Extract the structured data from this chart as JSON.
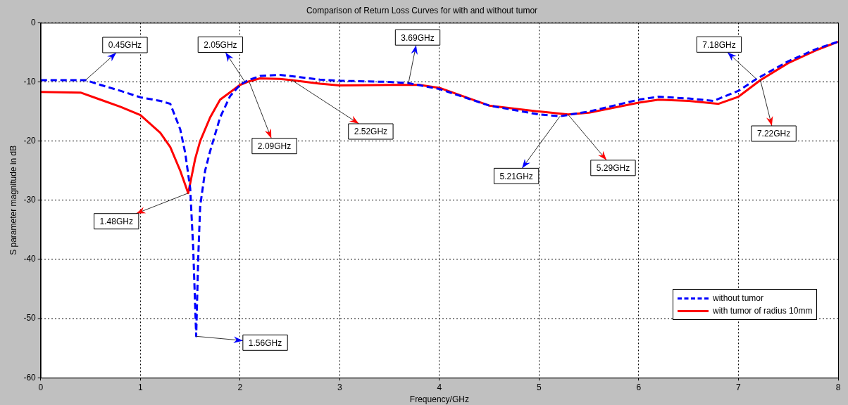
{
  "chart_data": {
    "type": "line",
    "title": "Comparison of Return Loss Curves for with and without tumor",
    "xlabel": "Frequency/GHz",
    "ylabel": "S parameter magnitude in dB",
    "xlim": [
      0,
      8
    ],
    "xticks": [
      0,
      1,
      2,
      3,
      4,
      5,
      6,
      7,
      8
    ],
    "ylim": [
      -60,
      0
    ],
    "yticks": [
      -60,
      -50,
      -40,
      -30,
      -20,
      -10,
      0
    ],
    "grid": true,
    "legend": "bottom right",
    "marker": "none",
    "series": [
      {
        "name": "without tumor",
        "color": "#0000ff",
        "line_style": "dashed",
        "x": [
          0,
          0.3,
          0.45,
          0.6,
          0.8,
          1.0,
          1.2,
          1.3,
          1.4,
          1.45,
          1.5,
          1.53,
          1.55,
          1.56,
          1.58,
          1.6,
          1.65,
          1.7,
          1.8,
          1.9,
          2.0,
          2.05,
          2.1,
          2.2,
          2.4,
          2.6,
          2.8,
          3.0,
          3.5,
          3.69,
          4.0,
          4.5,
          5.0,
          5.21,
          5.5,
          6.0,
          6.2,
          6.5,
          6.75,
          7.0,
          7.18,
          7.5,
          7.8,
          8.0
        ],
        "values": [
          -9.7,
          -9.7,
          -9.7,
          -10.5,
          -11.5,
          -12.6,
          -13.2,
          -13.7,
          -18,
          -22,
          -28,
          -38,
          -48,
          -53,
          -40,
          -31,
          -25,
          -21.7,
          -16,
          -12.4,
          -10.5,
          -10,
          -9.6,
          -9,
          -8.8,
          -9.2,
          -9.6,
          -9.8,
          -10,
          -10.2,
          -11.2,
          -14,
          -15.5,
          -15.8,
          -15,
          -13,
          -12.5,
          -12.8,
          -13.2,
          -11.5,
          -9.5,
          -6.5,
          -4.3,
          -3.2
        ]
      },
      {
        "name": "with tumor of radius 10mm",
        "color": "#ff0000",
        "line_style": "solid",
        "x": [
          0,
          0.4,
          0.6,
          0.8,
          1.0,
          1.2,
          1.3,
          1.4,
          1.48,
          1.55,
          1.6,
          1.7,
          1.8,
          2.0,
          2.09,
          2.2,
          2.4,
          2.52,
          2.8,
          3.0,
          3.5,
          3.8,
          4.0,
          4.5,
          5.0,
          5.29,
          5.5,
          6.0,
          6.2,
          6.5,
          6.8,
          7.0,
          7.22,
          7.5,
          7.8,
          8.0
        ],
        "values": [
          -11.7,
          -11.8,
          -13,
          -14.2,
          -15.6,
          -18.6,
          -21,
          -25,
          -28.8,
          -23,
          -20,
          -16,
          -13,
          -10.5,
          -9.9,
          -9.4,
          -9.5,
          -9.7,
          -10.3,
          -10.6,
          -10.5,
          -10.5,
          -11,
          -14,
          -15,
          -15.5,
          -15.2,
          -13.5,
          -13,
          -13.2,
          -13.7,
          -12.5,
          -9.7,
          -6.8,
          -4.5,
          -3.2
        ]
      }
    ],
    "annotations": [
      {
        "text": "0.45GHz",
        "x": 0.45,
        "y": -9.7
      },
      {
        "text": "2.05GHz",
        "x": 2.05,
        "y": -10
      },
      {
        "text": "1.48GHz",
        "x": 1.48,
        "y": -28.8
      },
      {
        "text": "2.09GHz",
        "x": 2.09,
        "y": -9.9
      },
      {
        "text": "2.52GHz",
        "x": 2.52,
        "y": -9.7
      },
      {
        "text": "3.69GHz",
        "x": 3.69,
        "y": -10.2
      },
      {
        "text": "1.56GHz",
        "x": 1.56,
        "y": -53
      },
      {
        "text": "5.21GHz",
        "x": 5.21,
        "y": -15.8
      },
      {
        "text": "5.29GHz",
        "x": 5.29,
        "y": -15.5
      },
      {
        "text": "7.18GHz",
        "x": 7.18,
        "y": -9.5
      },
      {
        "text": "7.22GHz",
        "x": 7.22,
        "y": -9.7
      }
    ]
  }
}
